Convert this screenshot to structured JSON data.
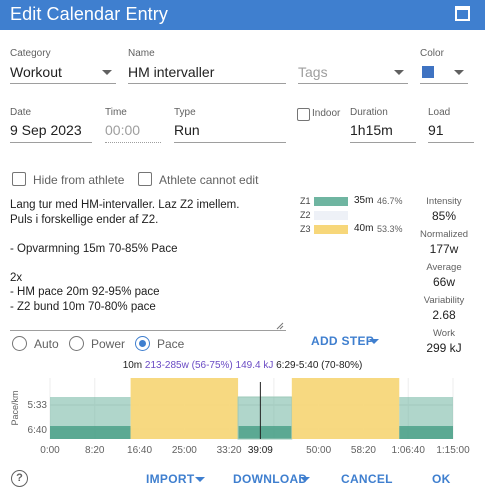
{
  "window": {
    "title": "Edit Calendar Entry"
  },
  "category": {
    "label": "Category",
    "value": "Workout"
  },
  "name": {
    "label": "Name",
    "value": "HM intervaller"
  },
  "tags": {
    "placeholder": "Tags"
  },
  "color": {
    "label": "Color",
    "value": "#3f73c2"
  },
  "date": {
    "label": "Date",
    "value": "9 Sep 2023"
  },
  "time": {
    "label": "Time",
    "placeholder": "00:00"
  },
  "type": {
    "label": "Type",
    "value": "Run"
  },
  "indoor": {
    "label": "Indoor",
    "checked": false
  },
  "duration": {
    "label": "Duration",
    "value": "1h15m"
  },
  "load": {
    "label": "Load",
    "value": "91"
  },
  "hide_from_athlete": {
    "label": "Hide from athlete",
    "checked": false
  },
  "athlete_cannot_edit": {
    "label": "Athlete cannot edit",
    "checked": false
  },
  "description": "Lang tur med HM-intervaller. Laz Z2 imellem.\nPuls i forskellige ender af Z2.\n\n- Opvarmning 15m 70-85% Pace\n\n2x\n- HM pace 20m 92-95% pace\n- Z2 bund 10m 70-80% pace",
  "zones": [
    {
      "name": "Z1",
      "time": "35m",
      "pct": "46.7%",
      "fraction": 0.467,
      "color": "#6fb5a1"
    },
    {
      "name": "Z2",
      "time": "",
      "pct": "",
      "fraction": 0.0,
      "color": "#d4e4ef"
    },
    {
      "name": "Z3",
      "time": "40m",
      "pct": "53.3%",
      "fraction": 0.533,
      "color": "#f7d77a"
    }
  ],
  "stats": [
    {
      "label": "Intensity",
      "value": "85%"
    },
    {
      "label": "Normalized",
      "value": "177w"
    },
    {
      "label": "Average",
      "value": "66w"
    },
    {
      "label": "Variability",
      "value": "2.68"
    },
    {
      "label": "Work",
      "value": "299 kJ"
    }
  ],
  "target": {
    "options": [
      "Auto",
      "Power",
      "Pace"
    ],
    "selected": "Pace"
  },
  "add_step_label": "ADD STEP",
  "step_summary": {
    "duration": "10m",
    "power": "213-285w (56-75%)",
    "energy": "149.4 kJ",
    "pace": "6:29-5:40 (70-80%)"
  },
  "chart": {
    "ylabel": "Pace/km",
    "yticks": [
      "5:33",
      "6:40"
    ],
    "xticks": [
      "0:00",
      "8:20",
      "16:40",
      "25:00",
      "33:20",
      "39:09",
      "50:00",
      "58:20",
      "1:06:40",
      "1:15:00"
    ],
    "cursor": "39:09",
    "total_seconds": 4500,
    "segments": [
      {
        "start": 0,
        "end": 900,
        "zone": "Z1"
      },
      {
        "start": 900,
        "end": 2100,
        "zone": "Z3"
      },
      {
        "start": 2100,
        "end": 2700,
        "zone": "Z1"
      },
      {
        "start": 2700,
        "end": 3900,
        "zone": "Z3"
      },
      {
        "start": 3900,
        "end": 4500,
        "zone": "Z1"
      }
    ],
    "cursor_seconds": 2349,
    "selected_segment": 2
  },
  "footer": {
    "help": "?",
    "import": "IMPORT",
    "download": "DOWNLOAD",
    "cancel": "CANCEL",
    "ok": "OK"
  }
}
